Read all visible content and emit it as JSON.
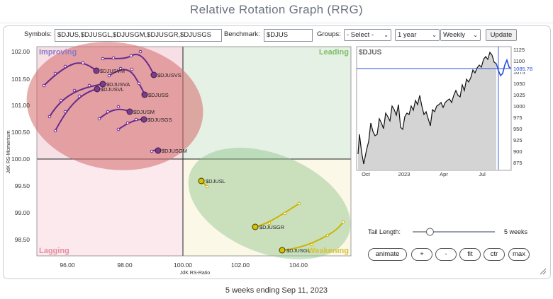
{
  "title": "Relative Rotation Graph (RRG)",
  "controls": {
    "symbols_label": "Symbols:",
    "symbols_value": "$DJUS,$DJUSGL,$DJUSGM,$DJUSGR,$DJUSGS",
    "benchmark_label": "Benchmark:",
    "benchmark_value": "$DJUS",
    "groups_label": "Groups:",
    "groups_value": "- Select -",
    "period_value": "1 year",
    "frequency_value": "Weekly",
    "update_label": "Update"
  },
  "rrg": {
    "quadrants": {
      "improving": "Improving",
      "leading": "Leading",
      "lagging": "Lagging",
      "weakening": "Weakening"
    },
    "quadrant_colors": {
      "improving": "#f6e0e6",
      "leading": "#e4f1e4",
      "lagging": "#fbe9ee",
      "weakening": "#fbf8e7"
    },
    "y_axis_label": "JdK RS-Momentum",
    "x_axis_label": "JdK RS-Ratio",
    "y_ticks": [
      "102.00",
      "101.50",
      "101.00",
      "100.50",
      "100.00",
      "99.50",
      "99.00",
      "98.50"
    ],
    "x_ticks": [
      "96.00",
      "98.00",
      "100.00",
      "102.00",
      "104.00"
    ],
    "symbols": [
      {
        "name": "$DJUSVM",
        "color": "#6a2a8e"
      },
      {
        "name": "$DJUSVS",
        "color": "#6a2a8e"
      },
      {
        "name": "$DJUSVA",
        "color": "#6a2a8e"
      },
      {
        "name": "$DJUSVL",
        "color": "#6a2a8e"
      },
      {
        "name": "$DJUSS",
        "color": "#6a2a8e"
      },
      {
        "name": "$DJUSM",
        "color": "#6a2a8e"
      },
      {
        "name": "$DJUSGS",
        "color": "#6a2a8e"
      },
      {
        "name": "$DJUSGM",
        "color": "#6a2a8e"
      },
      {
        "name": "$DJUSL",
        "color": "#c9b400"
      },
      {
        "name": "$DJUSGR",
        "color": "#c9b400"
      },
      {
        "name": "$DJUSGL",
        "color": "#c9b400"
      }
    ]
  },
  "price_chart": {
    "symbol": "$DJUS",
    "last_value": "1085.78",
    "y_ticks": [
      "1125",
      "1100",
      "1075",
      "1050",
      "1025",
      "1000",
      "975",
      "950",
      "925",
      "900",
      "875"
    ],
    "x_ticks": [
      "Oct",
      "2023",
      "Apr",
      "Jul"
    ]
  },
  "tail": {
    "label": "Tail Length:",
    "value_text": "5 weeks",
    "value": 5
  },
  "buttons": {
    "animate": "animate",
    "plus": "+",
    "minus": "-",
    "fit": "fit",
    "ctr": "ctr",
    "max": "max"
  },
  "footer": "5 weeks ending Sep 11, 2023"
}
